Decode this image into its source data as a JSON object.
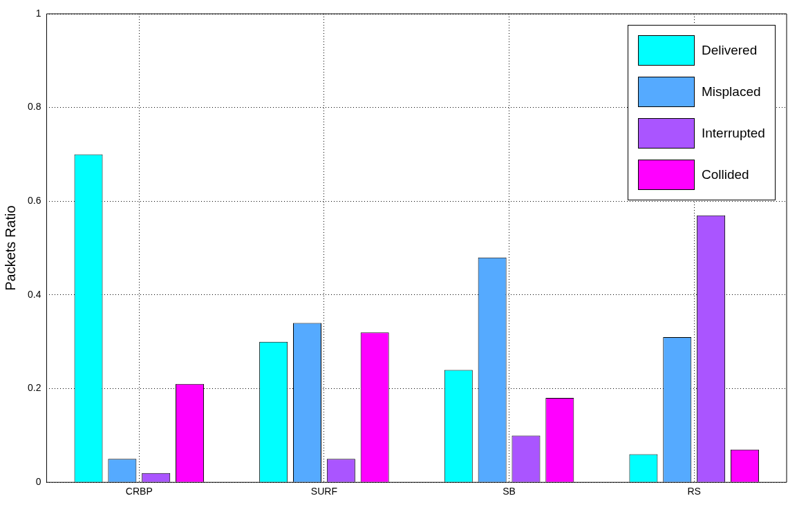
{
  "chart_data": {
    "type": "bar",
    "ylabel": "Packets Ratio",
    "categories": [
      "CRBP",
      "SURF",
      "SB",
      "RS"
    ],
    "series": [
      {
        "name": "Delivered",
        "color": "#00ffff",
        "values": [
          0.7,
          0.3,
          0.24,
          0.06
        ]
      },
      {
        "name": "Misplaced",
        "color": "#55aaff",
        "values": [
          0.05,
          0.34,
          0.48,
          0.31
        ]
      },
      {
        "name": "Interrupted",
        "color": "#aa55ff",
        "values": [
          0.02,
          0.05,
          0.1,
          0.57
        ]
      },
      {
        "name": "Collided",
        "color": "#ff00ff",
        "values": [
          0.21,
          0.32,
          0.18,
          0.07
        ]
      }
    ],
    "ylim": [
      0,
      1
    ],
    "yticks": [
      0,
      0.2,
      0.4,
      0.6,
      0.8,
      1
    ],
    "grid": true,
    "legend": "top right"
  }
}
